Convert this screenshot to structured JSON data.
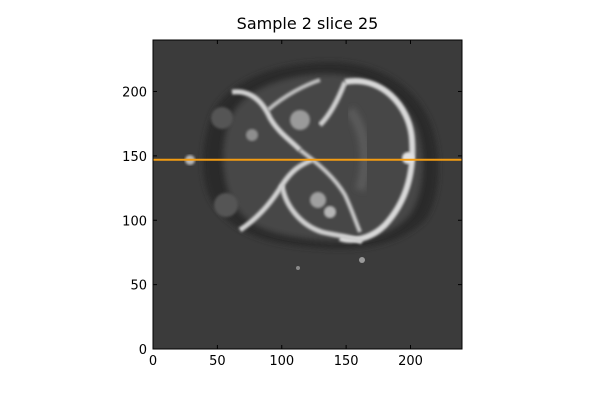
{
  "title": "Sample 2 slice 25",
  "axes": {
    "xlim": [
      0,
      240
    ],
    "ylim": [
      0,
      240
    ],
    "x_ticks": [
      0,
      50,
      100,
      150,
      200
    ],
    "y_ticks": [
      0,
      50,
      100,
      150,
      200
    ]
  },
  "image": {
    "description_colormap": "grayscale",
    "background_color": "#3b3b3b"
  },
  "overlay_line": {
    "y_value": 147,
    "color": "#f39c12"
  }
}
